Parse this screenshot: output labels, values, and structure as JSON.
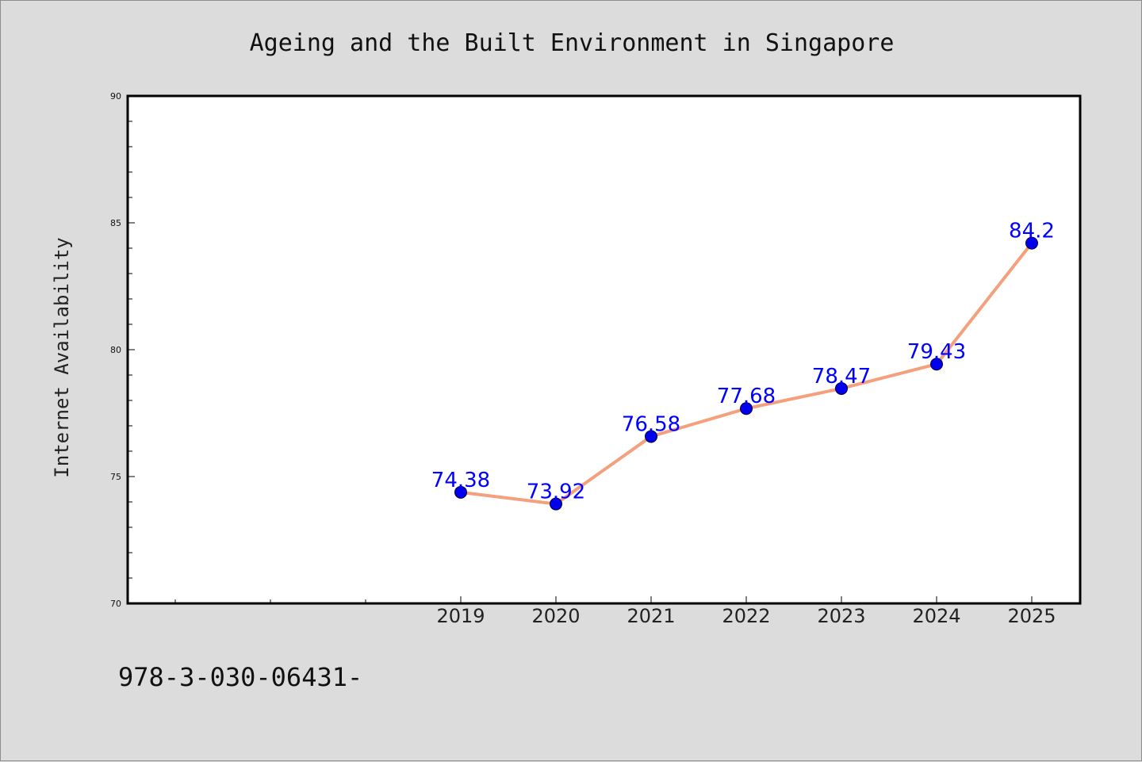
{
  "chart_data": {
    "type": "line",
    "title": "Ageing and the Built Environment in Singapore",
    "xlabel": "",
    "ylabel": "Internet Availability",
    "categories": [
      "2019",
      "2020",
      "2021",
      "2022",
      "2023",
      "2024",
      "2025"
    ],
    "series": [
      {
        "values": [
          74.38,
          73.92,
          76.58,
          77.68,
          78.47,
          79.43,
          84.2
        ],
        "data_labels": [
          "74.38",
          "73.92",
          "76.58",
          "77.68",
          "78.47",
          "79.43",
          "84.2"
        ]
      }
    ],
    "ylim": [
      70,
      90
    ],
    "y_ticks": [
      "70",
      "75",
      "80",
      "85",
      "90"
    ],
    "grid": false,
    "legend": "none",
    "line_color": "#f4a07c",
    "marker_color": "#0000ee",
    "label_color": "#0000ff"
  },
  "footer_note": "978-3-030-06431-"
}
